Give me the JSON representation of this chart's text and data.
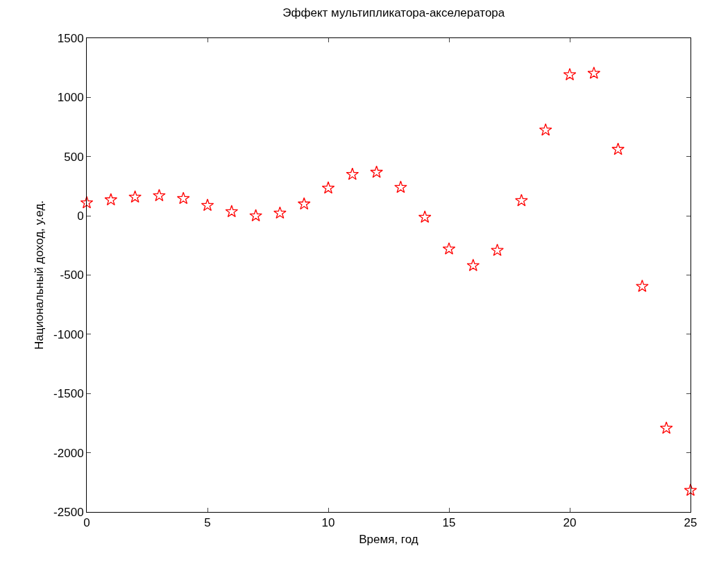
{
  "chart_data": {
    "type": "scatter",
    "title": "Эффект мультипликатора-акселератора",
    "xlabel": "Время, год",
    "ylabel": "Национальный доход, у.ед.",
    "x": [
      0,
      1,
      2,
      3,
      4,
      5,
      6,
      7,
      8,
      9,
      10,
      11,
      12,
      13,
      14,
      15,
      16,
      17,
      18,
      19,
      20,
      21,
      22,
      23,
      24,
      25
    ],
    "series": [
      {
        "color": "#ff0000",
        "values": [
          110,
          135,
          158,
          170,
          146,
          88,
          35,
          0,
          23,
          100,
          234,
          350,
          368,
          240,
          -12,
          -280,
          -420,
          -292,
          128,
          724,
          1191,
          1203,
          561,
          -596,
          -1793,
          -2318
        ]
      }
    ],
    "xlim": [
      0,
      25
    ],
    "xticks": [
      0,
      5,
      10,
      15,
      20,
      25
    ],
    "ylim": [
      -2500,
      1500
    ],
    "yticks": [
      -2500,
      -2000,
      -1500,
      -1000,
      -500,
      0,
      500,
      1000,
      1500
    ],
    "grid": false,
    "marker": "star"
  }
}
